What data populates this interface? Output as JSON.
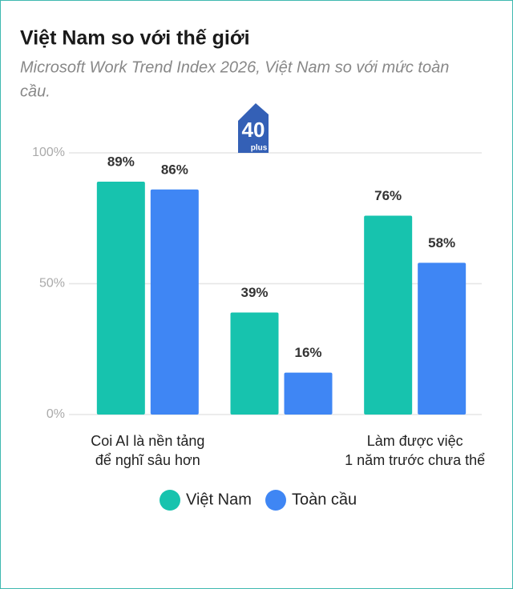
{
  "chart_data": {
    "type": "bar",
    "title": "Việt Nam so với thế giới",
    "subtitle": [
      "Microsoft Work Trend Index 2026, Việt Nam so với mức toàn",
      "cầu."
    ],
    "watermark": {
      "number": "40",
      "text": "plus"
    },
    "categories": [
      "Coi AI là nền tảng\nđể nghĩ sâu hơn",
      null,
      "Làm được việc\n1 năm trước chưa thể"
    ],
    "series": [
      {
        "name": "Việt Nam",
        "color": "#17c3ae",
        "values": [
          89,
          39,
          76
        ],
        "value_labels": [
          "89%",
          "39%",
          "76%"
        ]
      },
      {
        "name": "Toàn cầu",
        "color": "#3f86f4",
        "values": [
          86,
          16,
          58
        ],
        "value_labels": [
          "86%",
          "16%",
          "58%"
        ]
      }
    ],
    "ylim": [
      0,
      100
    ],
    "yticks": [
      {
        "value": 0,
        "label": "0%"
      },
      {
        "value": 50,
        "label": "50%"
      },
      {
        "value": 100,
        "label": "100%"
      }
    ],
    "grid": true
  }
}
